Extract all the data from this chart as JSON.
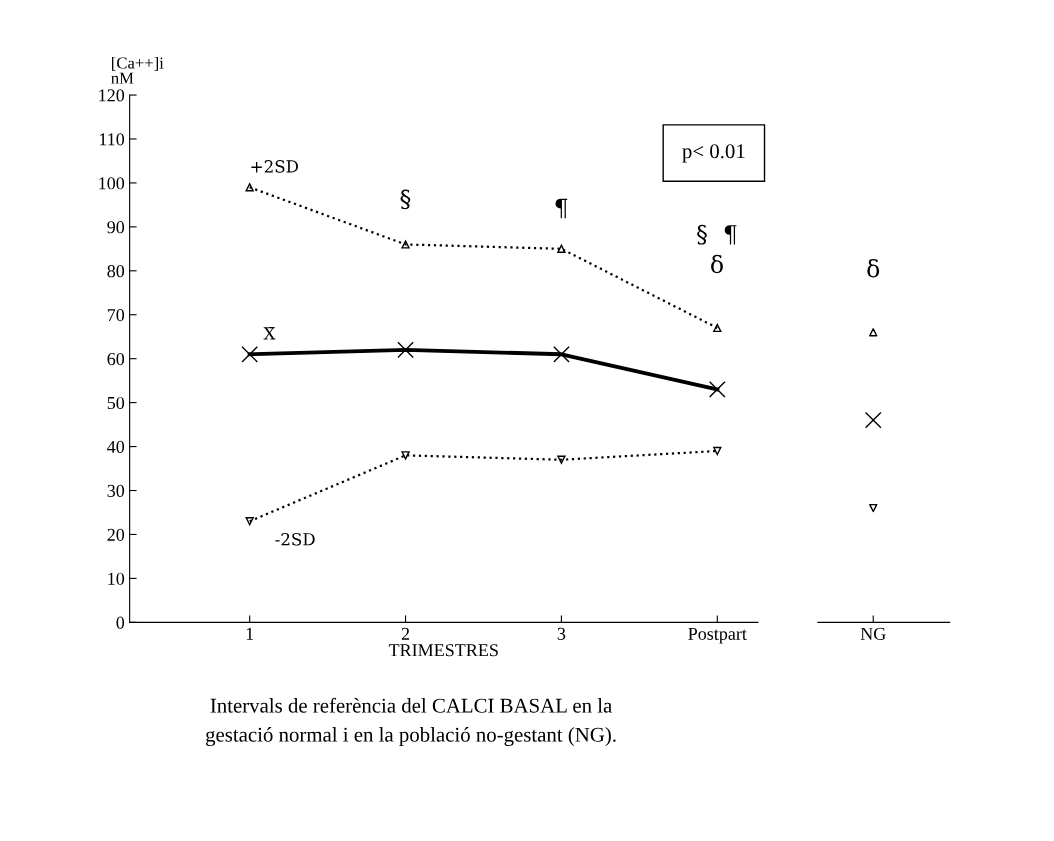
{
  "chart_data": [
    {
      "type": "line",
      "categories": [
        "1",
        "2",
        "3",
        "Postpart"
      ],
      "xlabel": "TRIMESTRES",
      "ylabel": "[Ca++]i\nnM",
      "ylim": [
        0,
        120
      ],
      "yticks": [
        0,
        10,
        20,
        30,
        40,
        50,
        60,
        70,
        80,
        90,
        100,
        110,
        120
      ],
      "grid": false,
      "legend": false,
      "series": [
        {
          "name": "+2SD",
          "color": "#000000",
          "values": [
            99,
            86,
            85,
            67
          ],
          "marker": "triangle",
          "line_style": "dotted"
        },
        {
          "name": "X̄",
          "color": "#000000",
          "values": [
            61,
            62,
            61,
            53
          ],
          "marker": "cross",
          "line_style": "solid"
        },
        {
          "name": "-2SD",
          "color": "#000000",
          "values": [
            23,
            38,
            37,
            39
          ],
          "marker": "triangle_down",
          "line_style": "dotted"
        }
      ],
      "annotations": [
        "p< 0.01",
        "Intervals de referència del CALCI BASAL en la\ngestació normal i en la població no-gestant (NG).",
        "§",
        "¶",
        "§  ¶",
        "δ"
      ]
    },
    {
      "type": "scatter",
      "categories": [
        "NG"
      ],
      "ylim": [
        0,
        120
      ],
      "tick_labels": "x",
      "grid": false,
      "legend": false,
      "series": [
        {
          "color": "#000000",
          "values": [
            66
          ],
          "marker": "triangle"
        },
        {
          "color": "#000000",
          "values": [
            46
          ],
          "marker": "cross"
        },
        {
          "color": "#000000",
          "values": [
            26
          ],
          "marker": "triangle_down"
        }
      ],
      "annotations": [
        "δ"
      ]
    }
  ]
}
